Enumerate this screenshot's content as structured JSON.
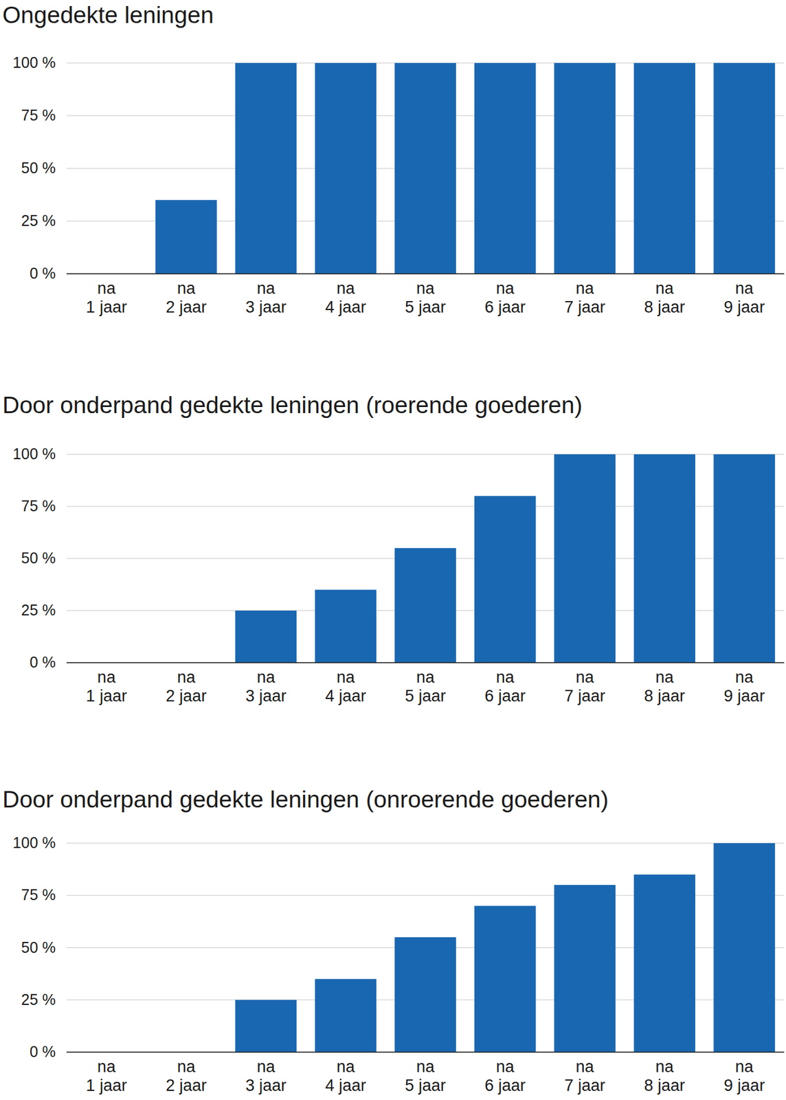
{
  "chart_data": [
    {
      "type": "bar",
      "title": "Ongedekte leningen",
      "categories": [
        "na 1 jaar",
        "na 2 jaar",
        "na 3 jaar",
        "na 4 jaar",
        "na 5 jaar",
        "na 6 jaar",
        "na 7 jaar",
        "na 8 jaar",
        "na 9 jaar"
      ],
      "values": [
        0,
        35,
        100,
        100,
        100,
        100,
        100,
        100,
        100
      ],
      "color": "#1a67b1",
      "ylim": [
        0,
        100
      ],
      "yticks": [
        {
          "value": 0,
          "label": "0 %"
        },
        {
          "value": 25,
          "label": "25 %"
        },
        {
          "value": 50,
          "label": "50 %"
        },
        {
          "value": 75,
          "label": "75 %"
        },
        {
          "value": 100,
          "label": "100 %"
        }
      ],
      "grid": true
    },
    {
      "type": "bar",
      "title": "Door onderpand gedekte leningen (roerende goederen)",
      "categories": [
        "na 1 jaar",
        "na 2 jaar",
        "na 3 jaar",
        "na 4 jaar",
        "na 5 jaar",
        "na 6 jaar",
        "na 7 jaar",
        "na 8 jaar",
        "na 9 jaar"
      ],
      "values": [
        0,
        0,
        25,
        35,
        55,
        80,
        100,
        100,
        100
      ],
      "color": "#1a67b1",
      "ylim": [
        0,
        100
      ],
      "yticks": [
        {
          "value": 0,
          "label": "0 %"
        },
        {
          "value": 25,
          "label": "25 %"
        },
        {
          "value": 50,
          "label": "50 %"
        },
        {
          "value": 75,
          "label": "75 %"
        },
        {
          "value": 100,
          "label": "100 %"
        }
      ],
      "grid": true
    },
    {
      "type": "bar",
      "title": "Door onderpand gedekte leningen (onroerende goederen)",
      "categories": [
        "na 1 jaar",
        "na 2 jaar",
        "na 3 jaar",
        "na 4 jaar",
        "na 5 jaar",
        "na 6 jaar",
        "na 7 jaar",
        "na 8 jaar",
        "na 9 jaar"
      ],
      "values": [
        0,
        0,
        25,
        35,
        55,
        70,
        80,
        85,
        100
      ],
      "color": "#1a67b1",
      "ylim": [
        0,
        100
      ],
      "yticks": [
        {
          "value": 0,
          "label": "0 %"
        },
        {
          "value": 25,
          "label": "25 %"
        },
        {
          "value": 50,
          "label": "50 %"
        },
        {
          "value": 75,
          "label": "75 %"
        },
        {
          "value": 100,
          "label": "100 %"
        }
      ],
      "grid": true
    }
  ]
}
